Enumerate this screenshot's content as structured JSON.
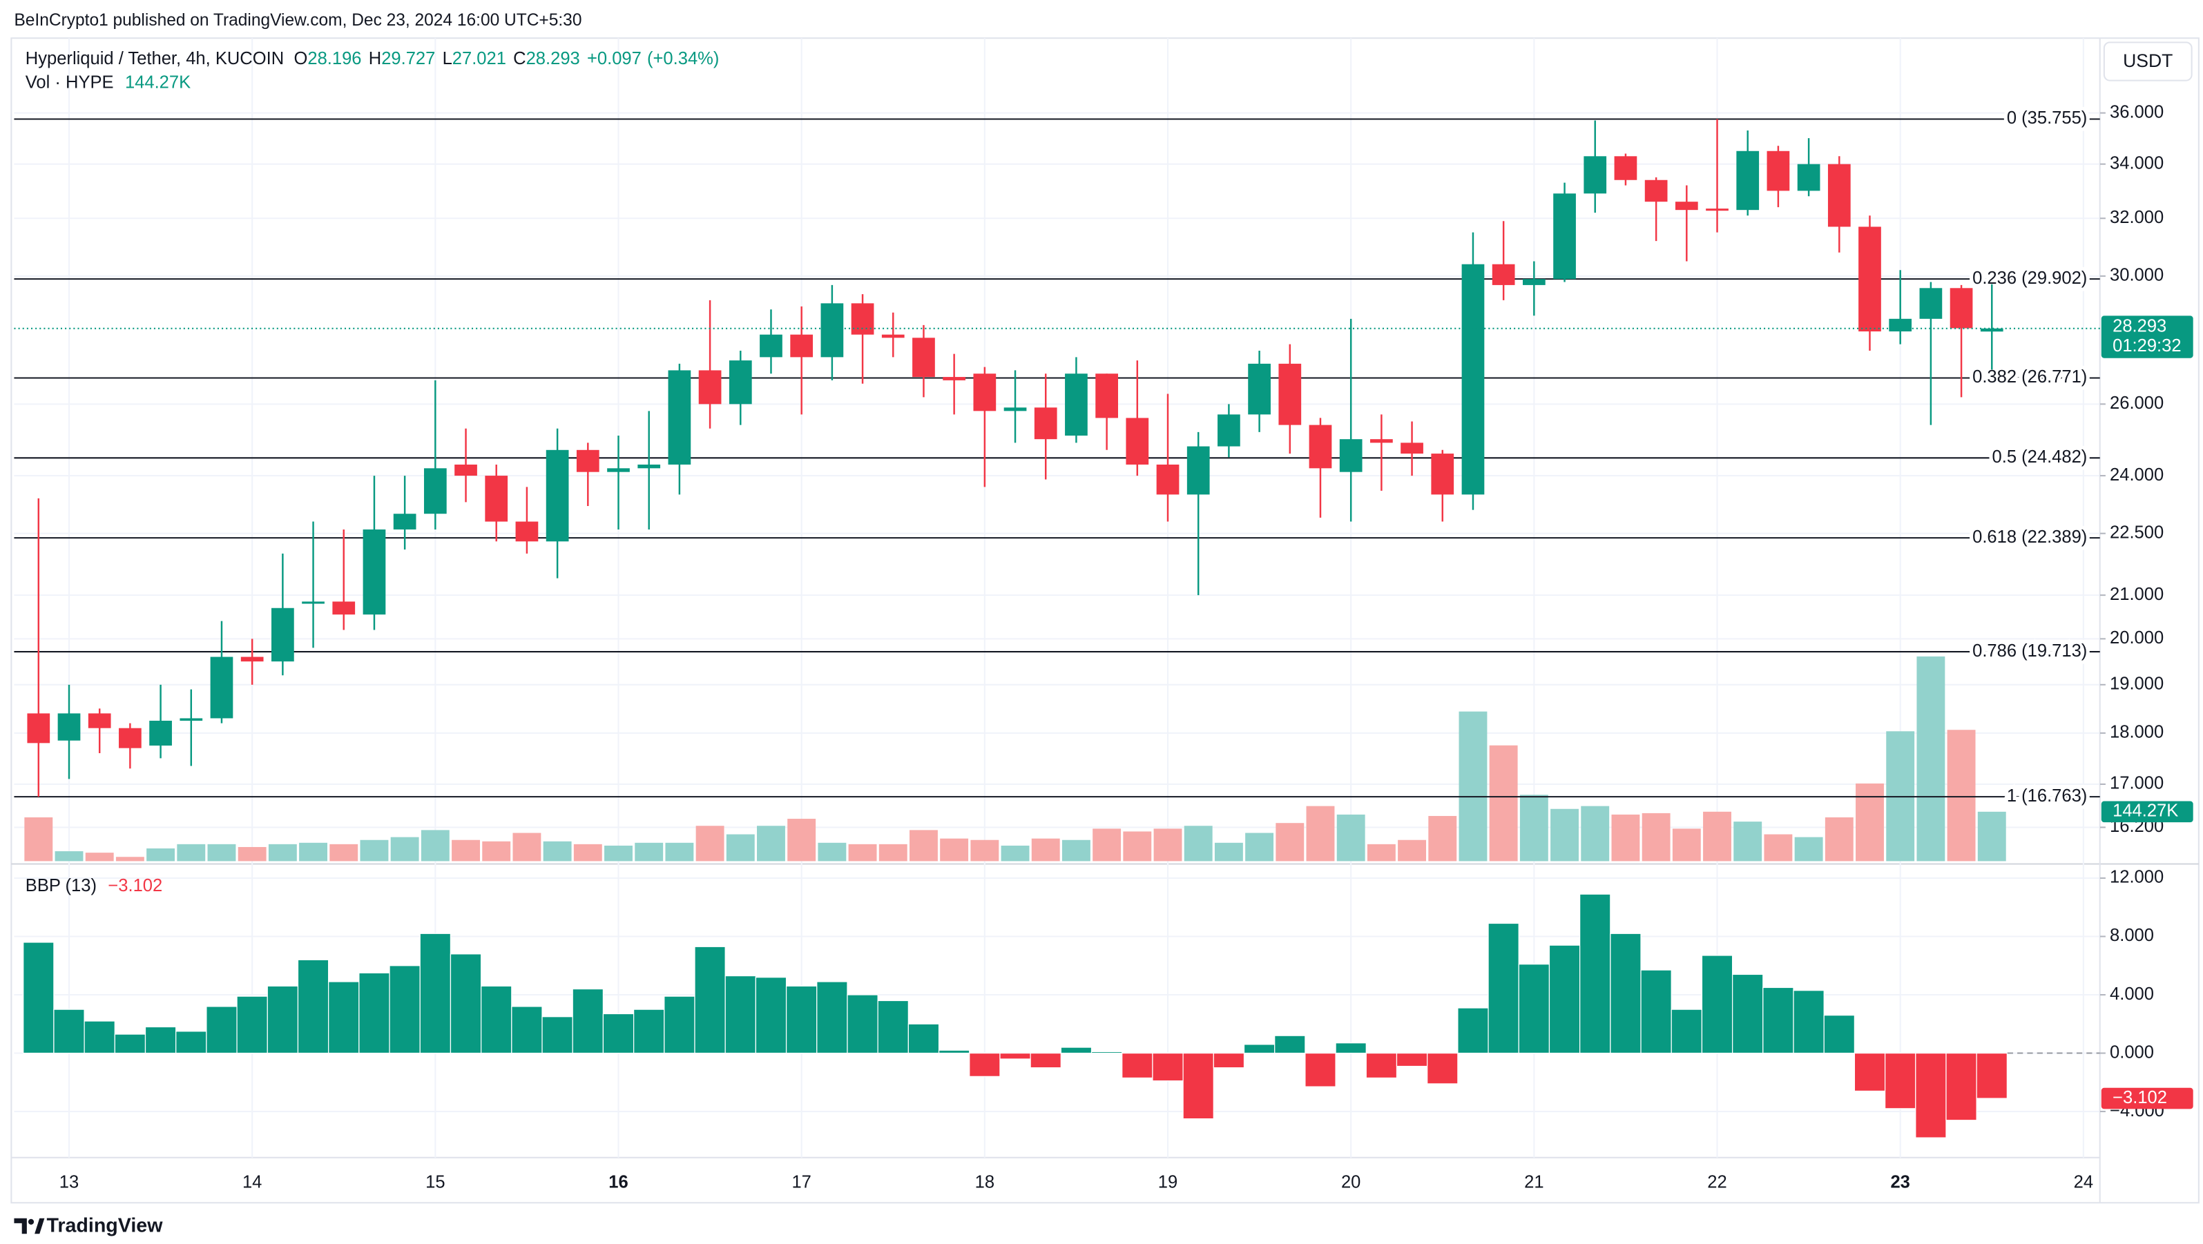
{
  "published": "BeInCrypto1 published on TradingView.com, Dec 23, 2024 16:00 UTC+5:30",
  "currency_button": "USDT",
  "logo": "TradingView",
  "chart_data": [
    {
      "type": "candlestick",
      "title": "Hyperliquid / Tether, 4h, KUCOIN",
      "ohlc_labels": [
        "O",
        "H",
        "L",
        "C"
      ],
      "change": {
        "value": 0.097,
        "label": "+0.097"
      },
      "change_pct": {
        "value": 0.34,
        "label": "(+0.34%)"
      },
      "countdown": "01:29:32",
      "volume_title": "Vol · HYPE",
      "up_color": "#089981",
      "down_color": "#f23645",
      "volume_up_color": "#92d2cc",
      "volume_down_color": "#f7a9a7",
      "log_scale": true,
      "grid": true,
      "xlim": [
        12.7,
        24.09
      ],
      "xticks": [
        13,
        14,
        15,
        {
          "value": 16,
          "label": "16",
          "bold": true
        },
        17,
        18,
        19,
        20,
        21,
        22,
        {
          "value": 23,
          "label": "23",
          "bold": true
        },
        24
      ],
      "ylim": [
        15.55,
        39.14
      ],
      "yticks": [
        {
          "value": 36,
          "label": "36.000"
        },
        {
          "value": 34,
          "label": "34.000"
        },
        {
          "value": 32,
          "label": "32.000"
        },
        {
          "value": 30,
          "label": "30.000"
        },
        {
          "value": 26,
          "label": "26.000"
        },
        {
          "value": 24,
          "label": "24.000"
        },
        {
          "value": 22.5,
          "label": "22.500"
        },
        {
          "value": 21,
          "label": "21.000"
        },
        {
          "value": 20,
          "label": "20.000"
        },
        {
          "value": 19,
          "label": "19.000"
        },
        {
          "value": 18,
          "label": "18.000"
        },
        {
          "value": 17,
          "label": "17.000"
        },
        {
          "value": 16.2,
          "label": "16.200"
        }
      ],
      "fib_levels": [
        {
          "value": 35.755,
          "label": "0 (35.755)"
        },
        {
          "value": 29.902,
          "label": "0.236 (29.902)"
        },
        {
          "value": 26.771,
          "label": "0.382 (26.771)"
        },
        {
          "value": 24.482,
          "label": "0.5 (24.482)"
        },
        {
          "value": 22.389,
          "label": "0.618 (22.389)"
        },
        {
          "value": 19.713,
          "label": "0.786 (19.713)"
        },
        {
          "value": 16.763,
          "label": "1 (16.763)"
        }
      ],
      "x": [
        12.8333,
        13,
        13.1667,
        13.3333,
        13.5,
        13.6667,
        13.8333,
        14,
        14.1667,
        14.3333,
        14.5,
        14.6667,
        14.8333,
        15,
        15.1667,
        15.3333,
        15.5,
        15.6667,
        15.8333,
        16,
        16.1667,
        16.3333,
        16.5,
        16.6667,
        16.8333,
        17,
        17.1667,
        17.3333,
        17.5,
        17.6667,
        17.8333,
        18,
        18.1667,
        18.3333,
        18.5,
        18.6667,
        18.8333,
        19,
        19.1667,
        19.3333,
        19.5,
        19.6667,
        19.8333,
        20,
        20.1667,
        20.3333,
        20.5,
        20.6667,
        20.8333,
        21,
        21.1667,
        21.3333,
        21.5,
        21.6667,
        21.8333,
        22,
        22.1667,
        22.3333,
        22.5,
        22.6667,
        22.8333,
        23,
        23.1667,
        23.3333,
        23.5
      ],
      "open": [
        18.4,
        17.85,
        18.4,
        18.1,
        17.75,
        18.25,
        18.3,
        19.6,
        19.5,
        20.8,
        20.85,
        20.55,
        22.6,
        23.0,
        24.3,
        24.0,
        22.8,
        22.3,
        24.7,
        24.1,
        24.2,
        24.3,
        27.0,
        26.0,
        27.4,
        28.1,
        27.4,
        29.1,
        28.1,
        28.0,
        26.8,
        26.9,
        25.8,
        25.9,
        25.1,
        26.9,
        25.6,
        24.3,
        23.5,
        24.8,
        25.7,
        27.2,
        25.4,
        24.1,
        25.0,
        24.9,
        24.6,
        23.5,
        30.4,
        29.7,
        29.9,
        32.9,
        34.3,
        33.4,
        32.6,
        32.35,
        32.3,
        34.5,
        33.0,
        34.0,
        31.7,
        28.2,
        28.6,
        29.6,
        28.196
      ],
      "high": [
        23.4,
        19.0,
        18.5,
        18.2,
        19.0,
        18.9,
        20.4,
        20.0,
        22.0,
        22.8,
        22.6,
        24.0,
        24.0,
        26.7,
        25.3,
        24.3,
        23.7,
        25.3,
        24.9,
        25.1,
        25.8,
        27.2,
        29.2,
        27.6,
        28.9,
        29.0,
        29.7,
        29.4,
        28.8,
        28.4,
        27.5,
        27.1,
        27.0,
        26.9,
        27.4,
        26.9,
        27.3,
        26.3,
        25.2,
        26.0,
        27.6,
        27.8,
        25.6,
        28.6,
        25.7,
        25.5,
        24.7,
        31.5,
        31.9,
        30.5,
        33.3,
        35.7,
        34.4,
        33.5,
        33.2,
        35.755,
        35.3,
        34.7,
        35.0,
        34.3,
        32.1,
        30.2,
        29.8,
        29.7,
        29.727
      ],
      "low": [
        16.763,
        17.1,
        17.6,
        17.3,
        17.5,
        17.35,
        18.2,
        19.0,
        19.2,
        19.8,
        20.2,
        20.2,
        22.1,
        22.6,
        23.3,
        22.3,
        22.0,
        21.4,
        23.2,
        22.6,
        22.6,
        23.5,
        25.3,
        25.4,
        26.9,
        25.7,
        26.7,
        26.6,
        27.4,
        26.2,
        25.7,
        23.7,
        24.9,
        23.9,
        24.9,
        24.7,
        24.0,
        22.8,
        21.0,
        24.5,
        25.2,
        24.6,
        22.9,
        22.8,
        23.6,
        24.0,
        22.8,
        23.1,
        29.2,
        28.7,
        29.8,
        32.2,
        33.2,
        31.2,
        30.5,
        31.5,
        32.1,
        32.4,
        32.8,
        30.8,
        27.6,
        27.8,
        25.4,
        26.2,
        27.021
      ],
      "close": [
        17.8,
        18.4,
        18.1,
        17.7,
        18.25,
        18.3,
        19.6,
        19.5,
        20.7,
        20.85,
        20.55,
        22.6,
        23.0,
        24.2,
        24.0,
        22.8,
        22.3,
        24.7,
        24.1,
        24.2,
        24.3,
        27.0,
        26.0,
        27.3,
        28.1,
        27.4,
        29.1,
        28.1,
        28.0,
        26.8,
        26.7,
        25.8,
        25.9,
        25.0,
        26.9,
        25.6,
        24.3,
        23.5,
        24.8,
        25.7,
        27.2,
        25.4,
        24.2,
        25.0,
        24.9,
        24.6,
        23.5,
        30.4,
        29.7,
        29.9,
        32.9,
        34.3,
        33.4,
        32.6,
        32.3,
        32.3,
        34.5,
        33.0,
        34.0,
        31.7,
        28.2,
        28.6,
        29.6,
        28.3,
        28.293
      ],
      "volume": [
        127800,
        28900,
        24700,
        12400,
        37100,
        49500,
        49500,
        41200,
        49500,
        53600,
        49500,
        61800,
        70100,
        90700,
        61800,
        57700,
        82400,
        57700,
        49500,
        45300,
        53600,
        53600,
        103100,
        78300,
        103100,
        123700,
        53600,
        49500,
        49500,
        90700,
        66000,
        61800,
        45300,
        66000,
        61800,
        94800,
        86600,
        94800,
        103100,
        53600,
        82400,
        111300,
        160800,
        136000,
        49500,
        61800,
        131900,
        436900,
        338000,
        193700,
        152500,
        160800,
        136000,
        140100,
        94800,
        144300,
        115400,
        78300,
        70100,
        127800,
        226700,
        379200,
        597700,
        383300,
        144270
      ],
      "volume_labels": [
        null,
        null,
        null,
        null,
        null,
        null,
        null,
        null,
        null,
        null,
        null,
        null,
        null,
        null,
        null,
        null,
        null,
        null,
        null,
        null,
        null,
        null,
        null,
        null,
        null,
        null,
        null,
        null,
        null,
        null,
        null,
        null,
        null,
        null,
        null,
        null,
        null,
        null,
        null,
        null,
        null,
        null,
        null,
        null,
        null,
        null,
        null,
        null,
        null,
        null,
        null,
        null,
        null,
        null,
        null,
        null,
        null,
        null,
        null,
        null,
        null,
        null,
        null,
        null,
        "144.27K"
      ]
    },
    {
      "type": "bar",
      "title": "BBP (13)",
      "pos_color": "#089981",
      "neg_color": "#f23645",
      "ylim": [
        -7.16,
        12.97
      ],
      "yticks": [
        {
          "value": 12,
          "label": "12.000"
        },
        {
          "value": 8,
          "label": "8.000"
        },
        {
          "value": 4,
          "label": "4.000"
        },
        {
          "value": 0,
          "label": "0.000"
        },
        {
          "value": -4,
          "label": "−4.000"
        }
      ],
      "values": [
        7.6,
        3.0,
        2.2,
        1.3,
        1.8,
        1.5,
        3.2,
        3.9,
        4.6,
        6.4,
        4.9,
        5.5,
        6.0,
        8.2,
        6.8,
        4.6,
        3.2,
        2.5,
        4.4,
        2.7,
        3.0,
        3.9,
        7.3,
        5.3,
        5.2,
        4.6,
        4.9,
        4.0,
        3.6,
        2.0,
        0.2,
        -1.6,
        -0.4,
        -1.0,
        0.4,
        0.1,
        -1.7,
        -1.9,
        -4.5,
        -1.0,
        0.6,
        1.2,
        -2.3,
        0.7,
        -1.7,
        -0.9,
        -2.1,
        3.1,
        8.9,
        6.1,
        7.4,
        10.9,
        8.2,
        5.7,
        3.0,
        6.7,
        5.4,
        4.5,
        4.3,
        2.6,
        -2.6,
        -3.8,
        -5.8,
        -4.6,
        -3.102
      ],
      "value_labels": [
        null,
        null,
        null,
        null,
        null,
        null,
        null,
        null,
        null,
        null,
        null,
        null,
        null,
        null,
        null,
        null,
        null,
        null,
        null,
        null,
        null,
        null,
        null,
        null,
        null,
        null,
        null,
        null,
        null,
        null,
        null,
        null,
        null,
        null,
        null,
        null,
        null,
        null,
        null,
        null,
        null,
        null,
        null,
        null,
        null,
        null,
        null,
        null,
        null,
        null,
        null,
        null,
        null,
        null,
        null,
        null,
        null,
        null,
        null,
        null,
        null,
        null,
        null,
        null,
        "−3.102"
      ]
    }
  ]
}
